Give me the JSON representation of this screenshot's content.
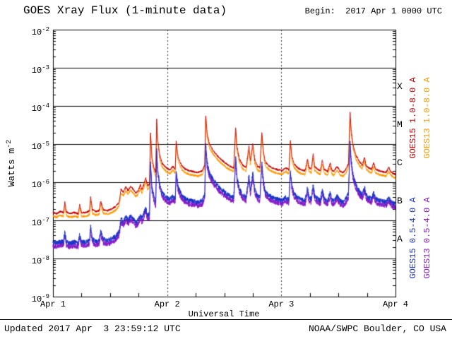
{
  "header": {
    "title": "GOES Xray Flux (1-minute data)",
    "begin": "Begin:  2017 Apr 1 0000 UTC"
  },
  "footer": {
    "updated": "Updated 2017 Apr  3 23:59:12 UTC",
    "credit": "NOAA/SWPC Boulder, CO USA"
  },
  "chart_data": {
    "type": "line",
    "title": "GOES Xray Flux (1-minute data)",
    "xlabel": "Universal Time",
    "ylabel_base": "Watts m",
    "ylabel_exp": "-2",
    "y_axis": {
      "scale": "log",
      "min": 1e-09,
      "max": 0.01,
      "tick_exponents": [
        "-2",
        "-3",
        "-4",
        "-5",
        "-6",
        "-7",
        "-8",
        "-9"
      ]
    },
    "x_axis": {
      "start_hours": 0,
      "end_hours": 72,
      "tick_labels": [
        "Apr 1",
        "Apr 2",
        "Apr 3",
        "Apr 4"
      ],
      "day_boundaries_hours": [
        24,
        48
      ]
    },
    "flare_classes": [
      {
        "letter": "X",
        "upper_exponent": -3,
        "lower_exponent": -4
      },
      {
        "letter": "M",
        "upper_exponent": -4,
        "lower_exponent": -5
      },
      {
        "letter": "C",
        "upper_exponent": -5,
        "lower_exponent": -6
      },
      {
        "letter": "B",
        "upper_exponent": -6,
        "lower_exponent": -7
      },
      {
        "letter": "A",
        "upper_exponent": -7,
        "lower_exponent": -8
      }
    ],
    "x_hours": [
      0,
      0.8,
      1.5,
      2.2,
      2.5,
      2.8,
      3.5,
      4.5,
      5.3,
      5.6,
      6.0,
      7.0,
      7.7,
      7.9,
      8.3,
      9.0,
      9.7,
      10.0,
      10.6,
      11.5,
      12.3,
      13.2,
      13.9,
      14.3,
      14.8,
      15.3,
      15.8,
      16.3,
      16.9,
      17.4,
      17.9,
      18.4,
      18.7,
      19.1,
      19.5,
      19.9,
      20.3,
      20.5,
      20.8,
      21.2,
      21.6,
      21.8,
      22.0,
      22.4,
      22.9,
      23.5,
      24.0,
      24.6,
      25.2,
      25.7,
      25.9,
      26.3,
      27.0,
      27.8,
      28.6,
      29.5,
      30.5,
      31.4,
      31.9,
      32.1,
      32.4,
      32.9,
      33.6,
      34.5,
      35.5,
      36.5,
      37.3,
      38.0,
      38.4,
      38.7,
      39.2,
      39.9,
      40.6,
      41.2,
      41.5,
      42.0,
      42.4,
      43.0,
      43.5,
      43.9,
      44.2,
      44.6,
      45.2,
      46.0,
      46.8,
      47.5,
      48.2,
      48.9,
      49.6,
      49.9,
      50.2,
      50.7,
      51.4,
      52.2,
      53.0,
      53.5,
      53.8,
      54.3,
      54.7,
      55.0,
      55.6,
      56.2,
      56.6,
      57.0,
      57.7,
      58.3,
      58.6,
      59.0,
      59.7,
      60.4,
      61.0,
      61.6,
      62.1,
      62.45,
      62.7,
      63.1,
      63.7,
      64.4,
      65.0,
      65.5,
      65.8,
      66.3,
      67.0,
      67.4,
      67.8,
      68.5,
      69.2,
      70.0,
      70.6,
      71.0,
      71.5,
      72.0
    ],
    "series": [
      {
        "name": "GOES15 1.0-8.0 A",
        "color": "#c80000",
        "noise_dex": 0.025,
        "flux": [
          1.6e-07,
          1.5e-07,
          1.7e-07,
          1.6e-07,
          3e-07,
          1.7e-07,
          1.5e-07,
          1.6e-07,
          1.5e-07,
          2.6e-07,
          1.6e-07,
          1.6e-07,
          1.8e-07,
          4.2e-07,
          1.9e-07,
          1.7e-07,
          1.8e-07,
          3.2e-07,
          1.9e-07,
          1.8e-07,
          2e-07,
          2.3e-07,
          3e-07,
          6.5e-07,
          5.5e-07,
          7.5e-07,
          6e-07,
          7.8e-07,
          6.5e-07,
          5.2e-07,
          6e-07,
          8.5e-07,
          6.5e-07,
          9e-07,
          1.3e-06,
          8e-07,
          9e-07,
          2.2e-05,
          4.5e-06,
          2.5e-06,
          1.8e-06,
          4.5e-05,
          1.4e-05,
          5.5e-06,
          3.2e-06,
          2.6e-06,
          2.3e-06,
          2.1e-06,
          2.6e-06,
          2.2e-06,
          1.2e-05,
          4.5e-06,
          2.8e-06,
          2.2e-06,
          2e-06,
          1.9e-06,
          1.8e-06,
          2e-06,
          2.8e-06,
          6e-05,
          2e-05,
          1e-05,
          7e-06,
          5e-06,
          3.8e-06,
          3e-06,
          2.6e-06,
          2.4e-06,
          2.8e-05,
          8e-06,
          4e-06,
          2.8e-06,
          2.4e-06,
          9e-06,
          3.5e-06,
          1.1e-05,
          4e-06,
          2.6e-06,
          2.4e-06,
          2.1e-05,
          7e-06,
          3.5e-06,
          2.8e-06,
          2.4e-06,
          2.2e-06,
          2.1e-06,
          2e-06,
          2.4e-06,
          2.1e-06,
          1.3e-05,
          5e-06,
          3e-06,
          2.4e-06,
          2.1e-06,
          2e-06,
          4.2e-06,
          2.4e-06,
          2.2e-06,
          5.5e-06,
          2.6e-06,
          2.2e-06,
          2e-06,
          3.8e-06,
          2.2e-06,
          1.9e-06,
          3.2e-06,
          2.1e-06,
          1.9e-06,
          2.6e-06,
          1.9e-06,
          1.8e-06,
          2.2e-06,
          3e-06,
          6.8e-05,
          2.2e-05,
          9e-06,
          5e-06,
          3.5e-06,
          2.8e-06,
          4.5e-06,
          2.8e-06,
          2.4e-06,
          2.2e-06,
          3.2e-06,
          2.2e-06,
          2e-06,
          1.9e-06,
          1.8e-06,
          2.4e-06,
          1.9e-06,
          1.7e-06,
          1.6e-06
        ]
      },
      {
        "name": "GOES13 1.0-8.0 A",
        "color": "#ff9900",
        "noise_dex": 0.03,
        "scale_of": 0,
        "scale": 0.8
      },
      {
        "name": "GOES15 0.5-4.0 A",
        "color": "#1b32c8",
        "noise_dex": 0.06,
        "flux": [
          2.7e-08,
          2.5e-08,
          2.8e-08,
          2.7e-08,
          5e-08,
          2.8e-08,
          2.5e-08,
          2.7e-08,
          2.5e-08,
          4.3e-08,
          2.7e-08,
          2.7e-08,
          3e-08,
          7e-08,
          3.2e-08,
          2.8e-08,
          3e-08,
          5.3e-08,
          3.2e-08,
          3e-08,
          3.3e-08,
          3.8e-08,
          5e-08,
          1.1e-07,
          9.2e-08,
          1.25e-07,
          1e-07,
          1.3e-07,
          1.1e-07,
          8.7e-08,
          1e-07,
          1.4e-07,
          1.1e-07,
          1.5e-07,
          2.2e-07,
          1.3e-07,
          1.5e-07,
          3.7e-06,
          7.5e-07,
          4.2e-07,
          3e-07,
          7.5e-06,
          2.3e-06,
          9.2e-07,
          5.3e-07,
          4.3e-07,
          3.8e-07,
          3.5e-07,
          4.3e-07,
          3.7e-07,
          2e-06,
          7.5e-07,
          4.7e-07,
          3.7e-07,
          3.3e-07,
          3.2e-07,
          3e-07,
          3.3e-07,
          4.7e-07,
          1e-05,
          3.3e-06,
          1.7e-06,
          1.2e-06,
          8.3e-07,
          6.3e-07,
          5e-07,
          4.3e-07,
          4e-07,
          4.7e-06,
          1.3e-06,
          6.7e-07,
          4.7e-07,
          4e-07,
          1.5e-06,
          5.8e-07,
          1.8e-06,
          6.7e-07,
          4.3e-07,
          4e-07,
          3.5e-06,
          1.2e-06,
          5.8e-07,
          4.7e-07,
          4e-07,
          3.7e-07,
          3.5e-07,
          3.3e-07,
          4e-07,
          3.5e-07,
          2.2e-06,
          8.3e-07,
          5e-07,
          4e-07,
          3.5e-07,
          3.3e-07,
          7e-07,
          4e-07,
          3.7e-07,
          9.2e-07,
          4.3e-07,
          3.7e-07,
          3.3e-07,
          6.3e-07,
          3.7e-07,
          3.2e-07,
          5.3e-07,
          3.5e-07,
          3.2e-07,
          4.3e-07,
          3.2e-07,
          3e-07,
          3.7e-07,
          5e-07,
          1.1e-05,
          3.7e-06,
          1.5e-06,
          8.3e-07,
          5.8e-07,
          4.7e-07,
          7.5e-07,
          4.7e-07,
          4e-07,
          3.7e-07,
          5.3e-07,
          3.7e-07,
          3.3e-07,
          3.2e-07,
          3e-07,
          4e-07,
          3.2e-07,
          2.8e-07,
          2.7e-07
        ]
      },
      {
        "name": "GOES13 0.5-4.0 A",
        "color": "#8818c8",
        "noise_dex": 0.065,
        "scale_of": 2,
        "scale": 0.8
      }
    ]
  }
}
